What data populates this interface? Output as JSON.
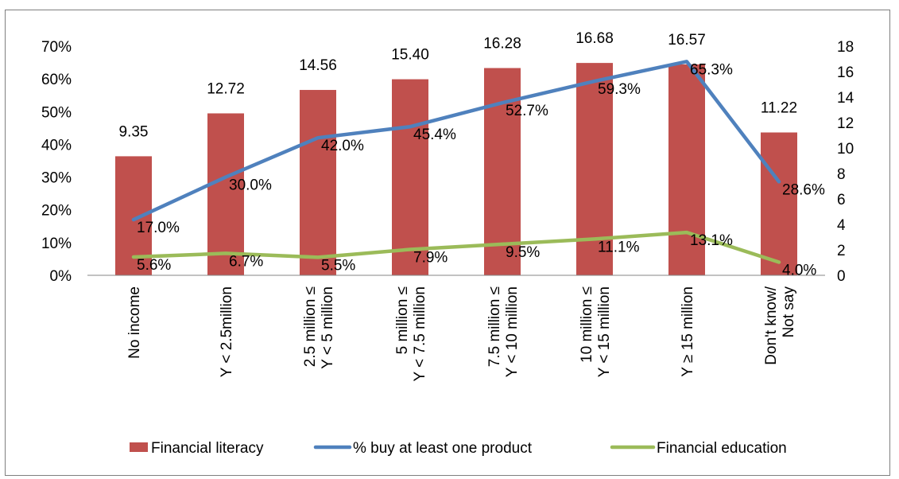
{
  "chart_data": {
    "type": "bar",
    "categories": [
      [
        "No income"
      ],
      [
        "Y < 2.5million"
      ],
      [
        "2.5 million ≤",
        "Y < 5 million"
      ],
      [
        "5 million ≤",
        "Y < 7.5 million"
      ],
      [
        "7.5 million ≤",
        "Y < 10 million"
      ],
      [
        "10 million ≤",
        "Y < 15 million"
      ],
      [
        "Y ≥ 15 million"
      ],
      [
        "Don't know/",
        "Not say"
      ]
    ],
    "series": [
      {
        "name": "Financial literacy",
        "type": "bar",
        "axis": "right",
        "color": "#c0504d",
        "values": [
          9.35,
          12.72,
          14.56,
          15.4,
          16.28,
          16.68,
          16.57,
          11.22
        ],
        "labels": [
          "9.35",
          "12.72",
          "14.56",
          "15.40",
          "16.28",
          "16.68",
          "16.57",
          "11.22"
        ]
      },
      {
        "name": "% buy at least one product",
        "type": "line",
        "axis": "left",
        "color": "#4f81bd",
        "values": [
          17.0,
          30.0,
          42.0,
          45.4,
          52.7,
          59.3,
          65.3,
          28.6
        ],
        "labels": [
          "17.0%",
          "30.0%",
          "42.0%",
          "45.4%",
          "52.7%",
          "59.3%",
          "65.3%",
          "28.6%"
        ]
      },
      {
        "name": "Financial education",
        "type": "line",
        "axis": "left",
        "color": "#9bbb59",
        "values": [
          5.6,
          6.7,
          5.5,
          7.9,
          9.5,
          11.1,
          13.1,
          4.0
        ],
        "labels": [
          "5.6%",
          "6.7%",
          "5.5%",
          "7.9%",
          "9.5%",
          "11.1%",
          "13.1%",
          "4.0%"
        ]
      }
    ],
    "y_left": {
      "ylim": [
        0,
        70
      ],
      "ticks": [
        0,
        10,
        20,
        30,
        40,
        50,
        60,
        70
      ],
      "tick_labels": [
        "0%",
        "10%",
        "20%",
        "30%",
        "40%",
        "50%",
        "60%",
        "70%"
      ]
    },
    "y_right": {
      "ylim": [
        0,
        18
      ],
      "ticks": [
        0,
        2,
        4,
        6,
        8,
        10,
        12,
        14,
        16,
        18
      ],
      "tick_labels": [
        "0",
        "2",
        "4",
        "6",
        "8",
        "10",
        "12",
        "14",
        "16",
        "18"
      ]
    },
    "title": "",
    "xlabel": "",
    "grid": false,
    "legend": "bottom"
  }
}
